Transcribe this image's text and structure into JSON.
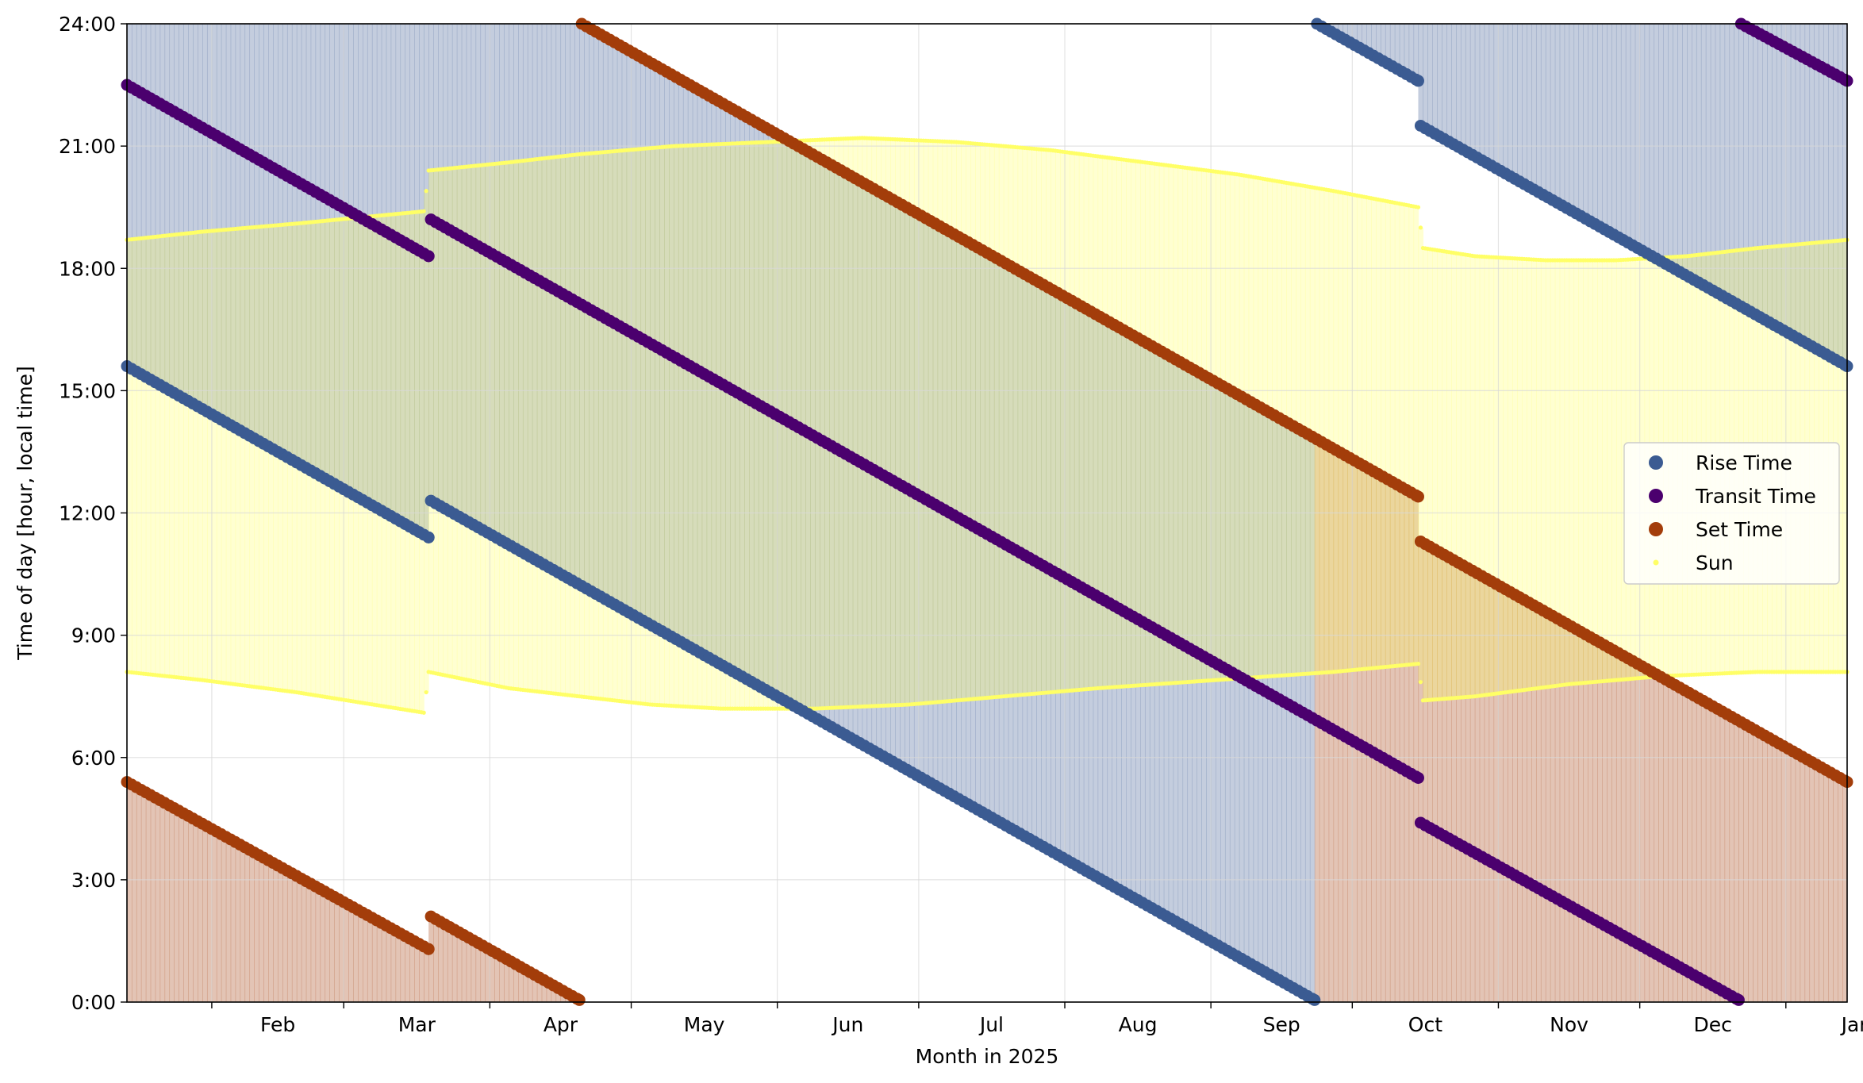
{
  "chart_data": {
    "type": "scatter",
    "xlabel": "Month in 2025",
    "ylabel": "Time of day [hour, local time]",
    "x_unit": "day of year 2025",
    "xlim": [
      14,
      379
    ],
    "ylim": [
      0,
      24
    ],
    "y_ticks": [
      0,
      3,
      6,
      9,
      12,
      15,
      18,
      21,
      24
    ],
    "y_tick_labels": [
      "0:00",
      "3:00",
      "6:00",
      "9:00",
      "12:00",
      "15:00",
      "18:00",
      "21:00",
      "24:00"
    ],
    "x_ticks": [
      32,
      60,
      91,
      121,
      152,
      182,
      213,
      244,
      274,
      305,
      335,
      366
    ],
    "x_label_positions": [
      46,
      75.5,
      106,
      136.5,
      167,
      197.5,
      228.5,
      259,
      289.5,
      320,
      350.5,
      381
    ],
    "x_tick_labels": [
      "Feb",
      "Mar",
      "Apr",
      "May",
      "Jun",
      "Jul",
      "Aug",
      "Sep",
      "Oct",
      "Nov",
      "Dec",
      "Jan"
    ],
    "grid": true,
    "legend_position": "center-right",
    "legend": [
      "Rise Time",
      "Transit Time",
      "Set Time",
      "Sun"
    ],
    "colors": {
      "rise": "#3b5b92",
      "transit": "#4b006e",
      "set": "#a33d0a",
      "sun": "#ffff66",
      "rise_fill": "#3b5b92",
      "set_fill": "#a33d0a",
      "sun_fill": "#ffff66"
    },
    "series": [
      {
        "name": "Rise Time",
        "segments": [
          [
            [
              14,
              15.6
            ],
            [
              78,
              11.4
            ]
          ],
          [
            [
              78.5,
              12.3
            ],
            [
              266,
              0.05
            ]
          ],
          [
            [
              266.5,
              24
            ],
            [
              288,
              22.6
            ]
          ],
          [
            [
              288.5,
              21.5
            ],
            [
              379,
              15.6
            ]
          ]
        ]
      },
      {
        "name": "Transit Time",
        "segments": [
          [
            [
              14,
              22.5
            ],
            [
              78,
              18.3
            ]
          ],
          [
            [
              78.5,
              19.2
            ],
            [
              288,
              5.5
            ]
          ],
          [
            [
              288.5,
              4.4
            ],
            [
              356,
              0.05
            ]
          ],
          [
            [
              356.5,
              24
            ],
            [
              379,
              22.6
            ]
          ]
        ]
      },
      {
        "name": "Set Time",
        "segments": [
          [
            [
              14,
              5.4
            ],
            [
              78,
              1.3
            ]
          ],
          [
            [
              78.5,
              2.1
            ],
            [
              110,
              0.05
            ]
          ],
          [
            [
              110.5,
              24
            ],
            [
              288,
              12.4
            ]
          ],
          [
            [
              288.5,
              11.3
            ],
            [
              379,
              5.4
            ]
          ]
        ]
      },
      {
        "name": "Sun",
        "sunrise": [
          [
            14,
            8.1
          ],
          [
            30,
            7.9
          ],
          [
            50,
            7.6
          ],
          [
            77,
            7.1
          ],
          [
            78,
            8.1
          ],
          [
            95,
            7.7
          ],
          [
            110,
            7.5
          ],
          [
            125,
            7.3
          ],
          [
            140,
            7.2
          ],
          [
            160,
            7.2
          ],
          [
            180,
            7.3
          ],
          [
            200,
            7.5
          ],
          [
            220,
            7.7
          ],
          [
            245,
            7.9
          ],
          [
            270,
            8.1
          ],
          [
            288,
            8.3
          ],
          [
            289,
            7.4
          ],
          [
            300,
            7.5
          ],
          [
            320,
            7.8
          ],
          [
            340,
            8.0
          ],
          [
            360,
            8.1
          ],
          [
            379,
            8.1
          ]
        ],
        "sunset": [
          [
            14,
            18.7
          ],
          [
            30,
            18.9
          ],
          [
            50,
            19.1
          ],
          [
            77,
            19.4
          ],
          [
            78,
            20.4
          ],
          [
            95,
            20.6
          ],
          [
            110,
            20.8
          ],
          [
            130,
            21.0
          ],
          [
            150,
            21.1
          ],
          [
            170,
            21.2
          ],
          [
            190,
            21.1
          ],
          [
            210,
            20.9
          ],
          [
            230,
            20.6
          ],
          [
            250,
            20.3
          ],
          [
            270,
            19.9
          ],
          [
            288,
            19.5
          ],
          [
            289,
            18.5
          ],
          [
            300,
            18.3
          ],
          [
            315,
            18.2
          ],
          [
            330,
            18.2
          ],
          [
            345,
            18.3
          ],
          [
            360,
            18.5
          ],
          [
            379,
            18.7
          ]
        ]
      }
    ]
  }
}
